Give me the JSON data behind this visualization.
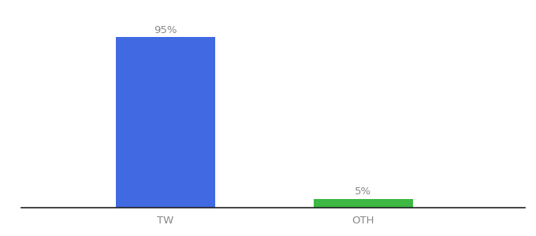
{
  "categories": [
    "TW",
    "OTH"
  ],
  "values": [
    95,
    5
  ],
  "bar_colors": [
    "#4169e1",
    "#3cb843"
  ],
  "value_labels": [
    "95%",
    "5%"
  ],
  "ylim": [
    0,
    105
  ],
  "background_color": "#ffffff",
  "label_fontsize": 9.5,
  "tick_fontsize": 9.5,
  "bar_width": 0.55,
  "xlim": [
    -0.3,
    2.5
  ],
  "x_positions": [
    0.5,
    1.6
  ]
}
